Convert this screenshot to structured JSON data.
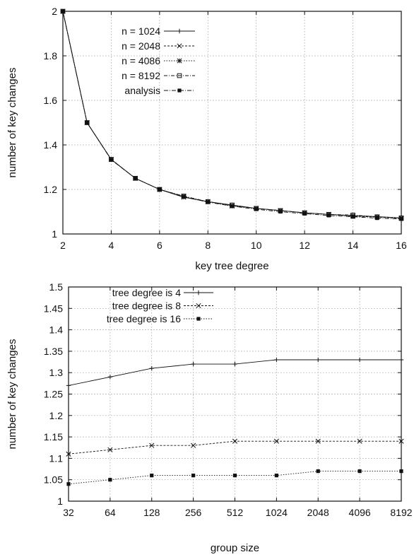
{
  "chart_data": [
    {
      "type": "line",
      "xlabel": "key tree degree",
      "ylabel": "number of key changes",
      "xlim": [
        2,
        16
      ],
      "ylim": [
        1,
        2
      ],
      "xticks": [
        "2",
        "4",
        "6",
        "8",
        "10",
        "12",
        "14",
        "16"
      ],
      "yticks": [
        "1",
        "1.2",
        "1.4",
        "1.6",
        "1.8",
        "2"
      ],
      "grid": true,
      "legend_position": "top-left",
      "series": [
        {
          "name": "n = 1024",
          "marker": "+",
          "dash": "",
          "x": [
            2,
            3,
            4,
            5,
            6,
            7,
            8,
            9,
            10,
            11,
            12,
            13,
            14,
            15,
            16
          ],
          "y": [
            2.0,
            1.5,
            1.335,
            1.25,
            1.2,
            1.165,
            1.145,
            1.13,
            1.115,
            1.105,
            1.095,
            1.088,
            1.082,
            1.078,
            1.072
          ]
        },
        {
          "name": "n = 2048",
          "marker": "x",
          "dash": "3 2",
          "x": [
            2,
            3,
            4,
            5,
            6,
            7,
            8,
            9,
            10,
            11,
            12,
            13,
            14,
            15,
            16
          ],
          "y": [
            2.0,
            1.5,
            1.335,
            1.25,
            1.2,
            1.165,
            1.145,
            1.128,
            1.115,
            1.105,
            1.095,
            1.088,
            1.08,
            1.076,
            1.07
          ]
        },
        {
          "name": "n = 4086",
          "marker": "*",
          "dash": "1.5 2",
          "x": [
            2,
            3,
            4,
            5,
            6,
            7,
            8,
            9,
            10,
            11,
            12,
            13,
            14,
            15,
            16
          ],
          "y": [
            2.0,
            1.5,
            1.335,
            1.25,
            1.2,
            1.17,
            1.145,
            1.125,
            1.115,
            1.105,
            1.095,
            1.088,
            1.082,
            1.077,
            1.072
          ]
        },
        {
          "name": "n = 8192",
          "marker": "square",
          "dash": "5 2 1 2",
          "x": [
            2,
            3,
            4,
            5,
            6,
            7,
            8,
            9,
            10,
            11,
            12,
            13,
            14,
            15,
            16
          ],
          "y": [
            2.0,
            1.5,
            1.335,
            1.25,
            1.2,
            1.17,
            1.145,
            1.13,
            1.115,
            1.105,
            1.095,
            1.088,
            1.085,
            1.077,
            1.072
          ]
        },
        {
          "name": "analysis",
          "marker": "filled-square",
          "dash": "6 2 1 2",
          "x": [
            2,
            3,
            4,
            5,
            6,
            7,
            8,
            9,
            10,
            11,
            12,
            13,
            14,
            15,
            16
          ],
          "y": [
            2.0,
            1.5,
            1.333,
            1.25,
            1.2,
            1.167,
            1.143,
            1.125,
            1.111,
            1.1,
            1.091,
            1.083,
            1.077,
            1.071,
            1.067
          ]
        }
      ]
    },
    {
      "type": "line",
      "xlabel": "group size",
      "ylabel": "number of key changes",
      "categories": [
        "32",
        "64",
        "128",
        "256",
        "512",
        "1024",
        "2048",
        "4096",
        "8192"
      ],
      "ylim": [
        1,
        1.5
      ],
      "yticks": [
        "1",
        "1.05",
        "1.1",
        "1.15",
        "1.2",
        "1.25",
        "1.3",
        "1.35",
        "1.4",
        "1.45",
        "1.5"
      ],
      "grid": true,
      "legend_position": "top-left",
      "series": [
        {
          "name": "tree degree is 4",
          "marker": "+",
          "dash": "",
          "values": [
            1.27,
            1.29,
            1.31,
            1.32,
            1.32,
            1.33,
            1.33,
            1.33,
            1.33
          ]
        },
        {
          "name": "tree degree is 8",
          "marker": "x",
          "dash": "3 2",
          "values": [
            1.11,
            1.12,
            1.13,
            1.13,
            1.14,
            1.14,
            1.14,
            1.14,
            1.14
          ]
        },
        {
          "name": "tree degree is 16",
          "marker": "filled-square",
          "dash": "1.5 2",
          "values": [
            1.04,
            1.05,
            1.06,
            1.06,
            1.06,
            1.06,
            1.07,
            1.07,
            1.07
          ]
        }
      ]
    }
  ]
}
